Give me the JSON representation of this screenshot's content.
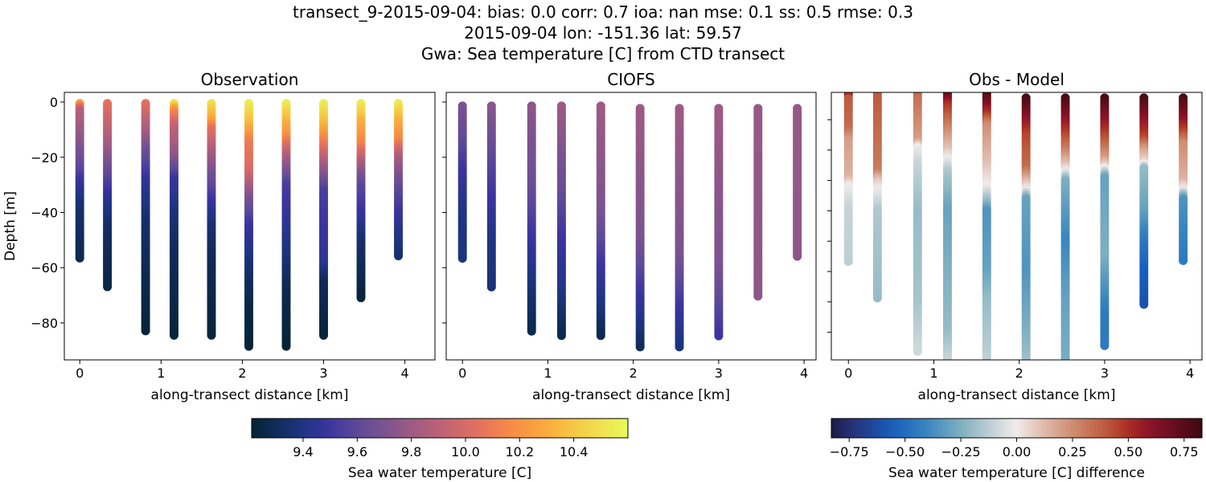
{
  "figure": {
    "title_lines": [
      "transect_9-2015-09-04: bias: 0.0  corr: 0.7  ioa: nan  mse: 0.1  ss: 0.5  rmse: 0.3",
      "2015-09-04 lon: -151.36 lat: 59.57",
      "Gwa: Sea temperature [C] from CTD transect"
    ]
  },
  "chart_data": [
    {
      "type": "scatter",
      "title": "Observation",
      "xlabel": "along-transect distance [km]",
      "ylabel": "Depth [m]",
      "xlim": [
        -0.19,
        4.37
      ],
      "ylim": [
        -93.4,
        3.5
      ],
      "xticks": [
        0,
        1,
        2,
        3,
        4
      ],
      "yticks": [
        0,
        -20,
        -40,
        -60,
        -80
      ],
      "show_ytick_labels": true,
      "colormap": "thermal",
      "clim": [
        9.21,
        10.6
      ],
      "columns": [
        {
          "x": 0,
          "profile": [
            [
              -0.5,
              10.25
            ],
            [
              -2.7,
              9.9
            ],
            [
              -14,
              9.75
            ],
            [
              -24,
              9.6
            ],
            [
              -31,
              9.45
            ],
            [
              -38,
              9.35
            ],
            [
              -57,
              9.28
            ]
          ]
        },
        {
          "x": 0.34,
          "profile": [
            [
              -0.5,
              10.05
            ],
            [
              -14,
              9.85
            ],
            [
              -27,
              9.6
            ],
            [
              -35,
              9.45
            ],
            [
              -45,
              9.33
            ],
            [
              -67,
              9.25
            ]
          ]
        },
        {
          "x": 0.81,
          "profile": [
            [
              -0.5,
              10.05
            ],
            [
              -10,
              9.85
            ],
            [
              -18,
              9.65
            ],
            [
              -30,
              9.45
            ],
            [
              -45,
              9.33
            ],
            [
              -65,
              9.27
            ],
            [
              -83,
              9.23
            ]
          ]
        },
        {
          "x": 1.16,
          "profile": [
            [
              -0.5,
              10.5
            ],
            [
              -3,
              10.2
            ],
            [
              -8,
              9.95
            ],
            [
              -20,
              9.75
            ],
            [
              -28,
              9.5
            ],
            [
              -40,
              9.38
            ],
            [
              -55,
              9.3
            ],
            [
              -85,
              9.23
            ]
          ]
        },
        {
          "x": 1.62,
          "profile": [
            [
              -0.5,
              10.5
            ],
            [
              -6,
              10.3
            ],
            [
              -10,
              10.05
            ],
            [
              -20,
              9.8
            ],
            [
              -36,
              9.5
            ],
            [
              -45,
              9.35
            ],
            [
              -60,
              9.28
            ],
            [
              -85,
              9.23
            ]
          ]
        },
        {
          "x": 2.08,
          "profile": [
            [
              -0.5,
              10.55
            ],
            [
              -8,
              10.35
            ],
            [
              -15,
              10.1
            ],
            [
              -25,
              10.0
            ],
            [
              -35,
              9.7
            ],
            [
              -45,
              9.5
            ],
            [
              -60,
              9.35
            ],
            [
              -75,
              9.25
            ],
            [
              -89,
              9.22
            ]
          ]
        },
        {
          "x": 2.54,
          "profile": [
            [
              -0.5,
              10.55
            ],
            [
              -5,
              10.4
            ],
            [
              -12,
              10.2
            ],
            [
              -20,
              9.85
            ],
            [
              -30,
              9.55
            ],
            [
              -40,
              9.48
            ],
            [
              -55,
              9.38
            ],
            [
              -70,
              9.27
            ],
            [
              -89,
              9.22
            ]
          ]
        },
        {
          "x": 3.0,
          "profile": [
            [
              -0.5,
              10.55
            ],
            [
              -8,
              10.35
            ],
            [
              -15,
              10.1
            ],
            [
              -22,
              9.85
            ],
            [
              -32,
              9.55
            ],
            [
              -45,
              9.5
            ],
            [
              -58,
              9.45
            ],
            [
              -65,
              9.3
            ],
            [
              -85,
              9.23
            ]
          ]
        },
        {
          "x": 3.46,
          "profile": [
            [
              -0.5,
              10.55
            ],
            [
              -8,
              10.3
            ],
            [
              -15,
              10.15
            ],
            [
              -22,
              9.85
            ],
            [
              -30,
              9.6
            ],
            [
              -40,
              9.5
            ],
            [
              -50,
              9.35
            ],
            [
              -71,
              9.23
            ]
          ]
        },
        {
          "x": 3.92,
          "profile": [
            [
              -0.5,
              10.55
            ],
            [
              -6,
              10.35
            ],
            [
              -14,
              10.15
            ],
            [
              -20,
              9.85
            ],
            [
              -32,
              9.6
            ],
            [
              -45,
              9.45
            ],
            [
              -56,
              9.35
            ]
          ]
        }
      ]
    },
    {
      "type": "scatter",
      "title": "CIOFS",
      "xlabel": "along-transect distance [km]",
      "xlim": [
        -0.19,
        4.14
      ],
      "ylim": [
        -93.4,
        3.5
      ],
      "xticks": [
        0,
        1,
        2,
        3,
        4
      ],
      "yticks": [
        0,
        -20,
        -40,
        -60,
        -80
      ],
      "show_ytick_labels": false,
      "colormap": "thermal",
      "clim": [
        9.21,
        10.6
      ],
      "columns": [
        {
          "x": 0,
          "profile": [
            [
              -1.4,
              9.7
            ],
            [
              -15,
              9.6
            ],
            [
              -25,
              9.5
            ],
            [
              -40,
              9.4
            ],
            [
              -57,
              9.38
            ]
          ]
        },
        {
          "x": 0.34,
          "profile": [
            [
              -1.4,
              9.75
            ],
            [
              -20,
              9.6
            ],
            [
              -35,
              9.5
            ],
            [
              -50,
              9.4
            ],
            [
              -67,
              9.37
            ]
          ]
        },
        {
          "x": 0.81,
          "profile": [
            [
              -1.4,
              9.75
            ],
            [
              -30,
              9.65
            ],
            [
              -55,
              9.45
            ],
            [
              -70,
              9.35
            ],
            [
              -83,
              9.27
            ]
          ]
        },
        {
          "x": 1.16,
          "profile": [
            [
              -1.4,
              9.8
            ],
            [
              -30,
              9.65
            ],
            [
              -50,
              9.5
            ],
            [
              -70,
              9.4
            ],
            [
              -85,
              9.27
            ]
          ]
        },
        {
          "x": 1.62,
          "profile": [
            [
              -1.4,
              9.8
            ],
            [
              -40,
              9.7
            ],
            [
              -60,
              9.5
            ],
            [
              -75,
              9.38
            ],
            [
              -85,
              9.27
            ]
          ]
        },
        {
          "x": 2.08,
          "profile": [
            [
              -2.3,
              9.8
            ],
            [
              -50,
              9.7
            ],
            [
              -70,
              9.5
            ],
            [
              -80,
              9.4
            ],
            [
              -89,
              9.3
            ]
          ]
        },
        {
          "x": 2.54,
          "profile": [
            [
              -2.3,
              9.8
            ],
            [
              -55,
              9.7
            ],
            [
              -75,
              9.5
            ],
            [
              -89,
              9.38
            ]
          ]
        },
        {
          "x": 3.0,
          "profile": [
            [
              -2.3,
              9.8
            ],
            [
              -60,
              9.7
            ],
            [
              -85,
              9.5
            ]
          ]
        },
        {
          "x": 3.46,
          "profile": [
            [
              -2.3,
              9.78
            ],
            [
              -71,
              9.75
            ]
          ]
        },
        {
          "x": 3.92,
          "profile": [
            [
              -2.3,
              9.78
            ],
            [
              -56,
              9.75
            ]
          ]
        }
      ]
    },
    {
      "type": "scatter",
      "title": "Obs - Model",
      "xlabel": "along-transect distance [km]",
      "xlim": [
        -0.2,
        4.14
      ],
      "ylim": [
        -89.1,
        -1.0
      ],
      "xticks": [
        0,
        1,
        2,
        3,
        4
      ],
      "yticks": [
        -10,
        -20,
        -30,
        -40,
        -50,
        -60,
        -70,
        -80
      ],
      "show_ytick_labels": false,
      "colormap": "balance",
      "clim": [
        -0.83,
        0.83
      ],
      "columns": [
        {
          "x": 0,
          "profile": [
            [
              -1.5,
              0.6
            ],
            [
              -3,
              0.4
            ],
            [
              -13,
              0.35
            ],
            [
              -17,
              0.2
            ],
            [
              -29,
              0.15
            ],
            [
              -32,
              0
            ],
            [
              -39,
              -0.1
            ],
            [
              -57,
              -0.12
            ]
          ]
        },
        {
          "x": 0.34,
          "profile": [
            [
              -1.5,
              0.4
            ],
            [
              -27,
              0.3
            ],
            [
              -30,
              0.1
            ],
            [
              -33,
              0
            ],
            [
              -40,
              -0.15
            ],
            [
              -69,
              -0.2
            ]
          ]
        },
        {
          "x": 0.81,
          "profile": [
            [
              -1.5,
              0.35
            ],
            [
              -17,
              0.2
            ],
            [
              -19,
              0
            ],
            [
              -25,
              -0.1
            ],
            [
              -40,
              -0.2
            ],
            [
              -70,
              -0.17
            ],
            [
              -87,
              -0.08
            ]
          ]
        },
        {
          "x": 1.16,
          "profile": [
            [
              -1.5,
              0.75
            ],
            [
              -5,
              0.5
            ],
            [
              -12,
              0.3
            ],
            [
              -20,
              0.1
            ],
            [
              -23,
              0
            ],
            [
              -27,
              -0.15
            ],
            [
              -40,
              -0.3
            ],
            [
              -60,
              -0.25
            ],
            [
              -80,
              -0.2
            ],
            [
              -89,
              -0.1
            ]
          ]
        },
        {
          "x": 1.62,
          "profile": [
            [
              -1.5,
              0.8
            ],
            [
              -8,
              0.5
            ],
            [
              -12,
              0.25
            ],
            [
              -25,
              0.1
            ],
            [
              -32,
              0
            ],
            [
              -37,
              -0.2
            ],
            [
              -40,
              -0.35
            ],
            [
              -60,
              -0.3
            ],
            [
              -70,
              -0.2
            ],
            [
              -89,
              -0.12
            ]
          ]
        },
        {
          "x": 2.08,
          "profile": [
            [
              -2.8,
              0.8
            ],
            [
              -10,
              0.6
            ],
            [
              -15,
              0.45
            ],
            [
              -26,
              0.35
            ],
            [
              -30,
              0.15
            ],
            [
              -33,
              0
            ],
            [
              -36,
              -0.3
            ],
            [
              -60,
              -0.35
            ],
            [
              -80,
              -0.25
            ],
            [
              -95,
              -0.15
            ]
          ]
        },
        {
          "x": 2.54,
          "profile": [
            [
              -2.8,
              0.8
            ],
            [
              -10,
              0.6
            ],
            [
              -15,
              0.45
            ],
            [
              -20,
              0.3
            ],
            [
              -25,
              0.1
            ],
            [
              -27,
              0
            ],
            [
              -30,
              -0.25
            ],
            [
              -50,
              -0.4
            ],
            [
              -70,
              -0.3
            ],
            [
              -95,
              -0.25
            ]
          ]
        },
        {
          "x": 3.0,
          "profile": [
            [
              -2.8,
              0.8
            ],
            [
              -10,
              0.6
            ],
            [
              -17,
              0.4
            ],
            [
              -23,
              0.2
            ],
            [
              -26,
              0
            ],
            [
              -29,
              -0.3
            ],
            [
              -55,
              -0.25
            ],
            [
              -65,
              -0.35
            ],
            [
              -75,
              -0.45
            ],
            [
              -85,
              -0.45
            ]
          ]
        },
        {
          "x": 3.46,
          "profile": [
            [
              -2.8,
              0.8
            ],
            [
              -10,
              0.6
            ],
            [
              -16,
              0.45
            ],
            [
              -20,
              0.2
            ],
            [
              -24,
              0.05
            ],
            [
              -26,
              -0.2
            ],
            [
              -40,
              -0.3
            ],
            [
              -50,
              -0.45
            ],
            [
              -60,
              -0.55
            ],
            [
              -71,
              -0.6
            ]
          ]
        },
        {
          "x": 3.92,
          "profile": [
            [
              -2.8,
              0.8
            ],
            [
              -10,
              0.6
            ],
            [
              -14,
              0.45
            ],
            [
              -18,
              0.25
            ],
            [
              -30,
              0.15
            ],
            [
              -33,
              0
            ],
            [
              -36,
              -0.35
            ],
            [
              -57,
              -0.45
            ]
          ]
        }
      ]
    }
  ],
  "colorbars": [
    {
      "label": "Sea water temperature [C]",
      "colormap": "thermal",
      "range": [
        9.21,
        10.6
      ],
      "ticks": [
        "9.4",
        "9.6",
        "9.8",
        "10.0",
        "10.2",
        "10.4"
      ]
    },
    {
      "label": "Sea water temperature [C] difference",
      "colormap": "balance",
      "range": [
        -0.83,
        0.83
      ],
      "ticks": [
        "−0.75",
        "−0.50",
        "−0.25",
        "0.00",
        "0.25",
        "0.50",
        "0.75"
      ]
    }
  ]
}
